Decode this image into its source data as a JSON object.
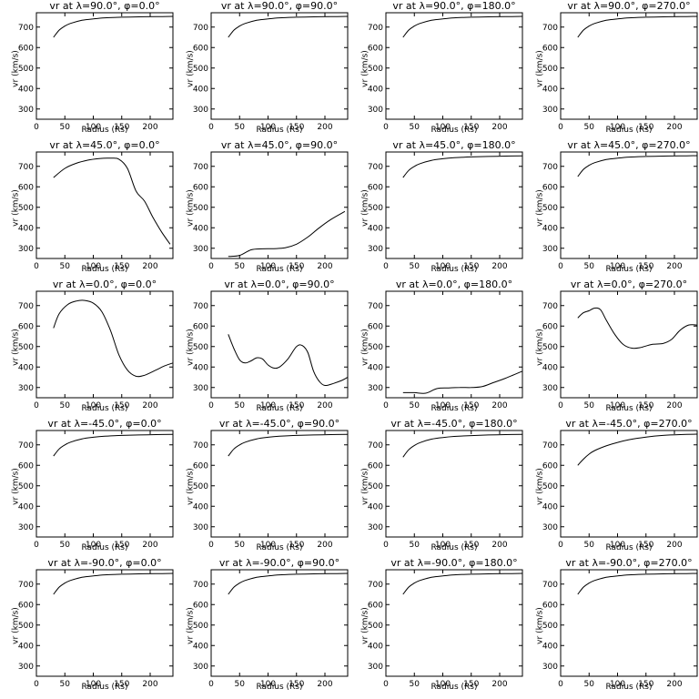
{
  "chart_data": [
    {
      "type": "line",
      "title": "vr at λ=90.0°, φ=0.0°",
      "xlabel": "Radius (Rs)",
      "ylabel": "vr (km/s)",
      "xlim": [
        0,
        240
      ],
      "ylim": [
        250,
        770
      ],
      "x": [
        30,
        40,
        50,
        60,
        80,
        100,
        120,
        150,
        180,
        210,
        240
      ],
      "values": [
        650,
        685,
        705,
        718,
        733,
        740,
        745,
        748,
        750,
        751,
        752
      ]
    },
    {
      "type": "line",
      "title": "vr at λ=90.0°, φ=90.0°",
      "xlabel": "Radius (Rs)",
      "ylabel": "vr (km/s)",
      "xlim": [
        0,
        240
      ],
      "ylim": [
        250,
        770
      ],
      "x": [
        30,
        40,
        50,
        60,
        80,
        100,
        120,
        150,
        180,
        210,
        240
      ],
      "values": [
        650,
        685,
        705,
        718,
        733,
        740,
        745,
        748,
        750,
        751,
        752
      ]
    },
    {
      "type": "line",
      "title": "vr at λ=90.0°, φ=180.0°",
      "xlabel": "Radius (Rs)",
      "ylabel": "vr (km/s)",
      "xlim": [
        0,
        240
      ],
      "ylim": [
        250,
        770
      ],
      "x": [
        30,
        40,
        50,
        60,
        80,
        100,
        120,
        150,
        180,
        210,
        240
      ],
      "values": [
        650,
        685,
        705,
        718,
        733,
        740,
        745,
        748,
        750,
        751,
        752
      ]
    },
    {
      "type": "line",
      "title": "vr at λ=90.0°, φ=270.0°",
      "xlabel": "Radius (Rs)",
      "ylabel": "vr (km/s)",
      "xlim": [
        0,
        240
      ],
      "ylim": [
        250,
        770
      ],
      "x": [
        30,
        40,
        50,
        60,
        80,
        100,
        120,
        150,
        180,
        210,
        240
      ],
      "values": [
        650,
        685,
        705,
        718,
        733,
        740,
        745,
        748,
        750,
        751,
        752
      ]
    },
    {
      "type": "line",
      "title": "vr at λ=45.0°, φ=0.0°",
      "xlabel": "Radius (Rs)",
      "ylabel": "vr (km/s)",
      "xlim": [
        0,
        240
      ],
      "ylim": [
        250,
        770
      ],
      "x": [
        30,
        50,
        70,
        90,
        110,
        130,
        145,
        160,
        175,
        190,
        205,
        220,
        235
      ],
      "values": [
        645,
        690,
        715,
        730,
        738,
        740,
        735,
        690,
        580,
        530,
        450,
        380,
        320
      ]
    },
    {
      "type": "line",
      "title": "vr at λ=45.0°, φ=90.0°",
      "xlabel": "Radius (Rs)",
      "ylabel": "vr (km/s)",
      "xlim": [
        0,
        240
      ],
      "ylim": [
        250,
        770
      ],
      "x": [
        30,
        50,
        70,
        90,
        110,
        130,
        150,
        170,
        190,
        210,
        235
      ],
      "values": [
        260,
        265,
        292,
        297,
        298,
        302,
        320,
        355,
        400,
        440,
        480
      ]
    },
    {
      "type": "line",
      "title": "vr at λ=45.0°, φ=180.0°",
      "xlabel": "Radius (Rs)",
      "ylabel": "vr (km/s)",
      "xlim": [
        0,
        240
      ],
      "ylim": [
        250,
        770
      ],
      "x": [
        30,
        40,
        50,
        60,
        80,
        100,
        120,
        150,
        180,
        210,
        240
      ],
      "values": [
        645,
        680,
        700,
        713,
        729,
        737,
        742,
        746,
        748,
        750,
        751
      ]
    },
    {
      "type": "line",
      "title": "vr at λ=45.0°, φ=270.0°",
      "xlabel": "Radius (Rs)",
      "ylabel": "vr (km/s)",
      "xlim": [
        0,
        240
      ],
      "ylim": [
        250,
        770
      ],
      "x": [
        30,
        40,
        50,
        60,
        80,
        100,
        120,
        150,
        180,
        210,
        240
      ],
      "values": [
        650,
        685,
        705,
        718,
        733,
        740,
        745,
        748,
        750,
        751,
        752
      ]
    },
    {
      "type": "line",
      "title": "vr at λ=0.0°, φ=0.0°",
      "xlabel": "Radius (Rs)",
      "ylabel": "vr (km/s)",
      "xlim": [
        0,
        240
      ],
      "ylim": [
        250,
        770
      ],
      "x": [
        30,
        40,
        55,
        70,
        85,
        100,
        115,
        130,
        145,
        160,
        175,
        190,
        210,
        225,
        240
      ],
      "values": [
        590,
        660,
        705,
        722,
        725,
        712,
        670,
        580,
        460,
        385,
        355,
        360,
        385,
        405,
        420
      ]
    },
    {
      "type": "line",
      "title": "vr at λ=0.0°, φ=90.0°",
      "xlabel": "Radius (Rs)",
      "ylabel": "vr (km/s)",
      "xlim": [
        0,
        240
      ],
      "ylim": [
        250,
        770
      ],
      "x": [
        30,
        40,
        50,
        60,
        70,
        80,
        90,
        100,
        110,
        120,
        135,
        150,
        160,
        170,
        180,
        190,
        200,
        215,
        230,
        240
      ],
      "values": [
        560,
        490,
        435,
        420,
        430,
        445,
        440,
        410,
        395,
        400,
        440,
        500,
        505,
        470,
        380,
        330,
        310,
        320,
        335,
        350
      ]
    },
    {
      "type": "line",
      "title": "vr at λ=0.0°, φ=180.0°",
      "xlabel": "Radius (Rs)",
      "ylabel": "vr (km/s)",
      "xlim": [
        0,
        240
      ],
      "ylim": [
        250,
        770
      ],
      "x": [
        30,
        50,
        70,
        90,
        110,
        130,
        150,
        170,
        190,
        210,
        240
      ],
      "values": [
        275,
        275,
        272,
        295,
        298,
        300,
        300,
        305,
        325,
        345,
        380
      ]
    },
    {
      "type": "line",
      "title": "vr at λ=0.0°, φ=270.0°",
      "xlabel": "Radius (Rs)",
      "ylabel": "vr (km/s)",
      "xlim": [
        0,
        240
      ],
      "ylim": [
        250,
        770
      ],
      "x": [
        30,
        40,
        50,
        60,
        70,
        80,
        95,
        110,
        125,
        140,
        160,
        180,
        195,
        210,
        225,
        240
      ],
      "values": [
        640,
        665,
        675,
        688,
        680,
        630,
        560,
        510,
        492,
        495,
        510,
        515,
        535,
        580,
        605,
        605
      ]
    },
    {
      "type": "line",
      "title": "vr at λ=-45.0°, φ=0.0°",
      "xlabel": "Radius (Rs)",
      "ylabel": "vr (km/s)",
      "xlim": [
        0,
        240
      ],
      "ylim": [
        250,
        770
      ],
      "x": [
        30,
        40,
        50,
        60,
        80,
        100,
        120,
        150,
        180,
        210,
        240
      ],
      "values": [
        645,
        680,
        700,
        713,
        729,
        737,
        742,
        746,
        748,
        750,
        751
      ]
    },
    {
      "type": "line",
      "title": "vr at λ=-45.0°, φ=90.0°",
      "xlabel": "Radius (Rs)",
      "ylabel": "vr (km/s)",
      "xlim": [
        0,
        240
      ],
      "ylim": [
        250,
        770
      ],
      "x": [
        30,
        40,
        50,
        60,
        80,
        100,
        120,
        150,
        180,
        210,
        240
      ],
      "values": [
        645,
        680,
        700,
        713,
        729,
        737,
        742,
        746,
        748,
        750,
        751
      ]
    },
    {
      "type": "line",
      "title": "vr at λ=-45.0°, φ=180.0°",
      "xlabel": "Radius (Rs)",
      "ylabel": "vr (km/s)",
      "xlim": [
        0,
        240
      ],
      "ylim": [
        250,
        770
      ],
      "x": [
        30,
        40,
        50,
        60,
        80,
        100,
        120,
        150,
        180,
        210,
        240
      ],
      "values": [
        640,
        676,
        697,
        711,
        728,
        736,
        741,
        745,
        748,
        750,
        751
      ]
    },
    {
      "type": "line",
      "title": "vr at λ=-45.0°, φ=270.0°",
      "xlabel": "Radius (Rs)",
      "ylabel": "vr (km/s)",
      "xlim": [
        0,
        240
      ],
      "ylim": [
        250,
        770
      ],
      "x": [
        30,
        40,
        50,
        60,
        80,
        100,
        120,
        150,
        180,
        210,
        240
      ],
      "values": [
        600,
        630,
        655,
        672,
        695,
        712,
        725,
        738,
        746,
        750,
        752
      ]
    },
    {
      "type": "line",
      "title": "vr at λ=-90.0°, φ=0.0°",
      "xlabel": "Radius (Rs)",
      "ylabel": "vr (km/s)",
      "xlim": [
        0,
        240
      ],
      "ylim": [
        250,
        770
      ],
      "x": [
        30,
        40,
        50,
        60,
        80,
        100,
        120,
        150,
        180,
        210,
        240
      ],
      "values": [
        650,
        685,
        705,
        718,
        733,
        740,
        745,
        748,
        750,
        751,
        752
      ]
    },
    {
      "type": "line",
      "title": "vr at λ=-90.0°, φ=90.0°",
      "xlabel": "Radius (Rs)",
      "ylabel": "vr (km/s)",
      "xlim": [
        0,
        240
      ],
      "ylim": [
        250,
        770
      ],
      "x": [
        30,
        40,
        50,
        60,
        80,
        100,
        120,
        150,
        180,
        210,
        240
      ],
      "values": [
        650,
        685,
        705,
        718,
        733,
        740,
        745,
        748,
        750,
        751,
        752
      ]
    },
    {
      "type": "line",
      "title": "vr at λ=-90.0°, φ=180.0°",
      "xlabel": "Radius (Rs)",
      "ylabel": "vr (km/s)",
      "xlim": [
        0,
        240
      ],
      "ylim": [
        250,
        770
      ],
      "x": [
        30,
        40,
        50,
        60,
        80,
        100,
        120,
        150,
        180,
        210,
        240
      ],
      "values": [
        650,
        685,
        705,
        718,
        733,
        740,
        745,
        748,
        750,
        751,
        752
      ]
    },
    {
      "type": "line",
      "title": "vr at λ=-90.0°, φ=270.0°",
      "xlabel": "Radius (Rs)",
      "ylabel": "vr (km/s)",
      "xlim": [
        0,
        240
      ],
      "ylim": [
        250,
        770
      ],
      "x": [
        30,
        40,
        50,
        60,
        80,
        100,
        120,
        150,
        180,
        210,
        240
      ],
      "values": [
        650,
        685,
        705,
        718,
        733,
        740,
        745,
        748,
        750,
        751,
        752
      ]
    }
  ],
  "x_ticks": [
    "0",
    "50",
    "100",
    "150",
    "200"
  ],
  "x_tick_values": [
    0,
    50,
    100,
    150,
    200
  ],
  "y_ticks": [
    "300",
    "400",
    "500",
    "600",
    "700"
  ],
  "y_tick_values": [
    300,
    400,
    500,
    600,
    700
  ]
}
